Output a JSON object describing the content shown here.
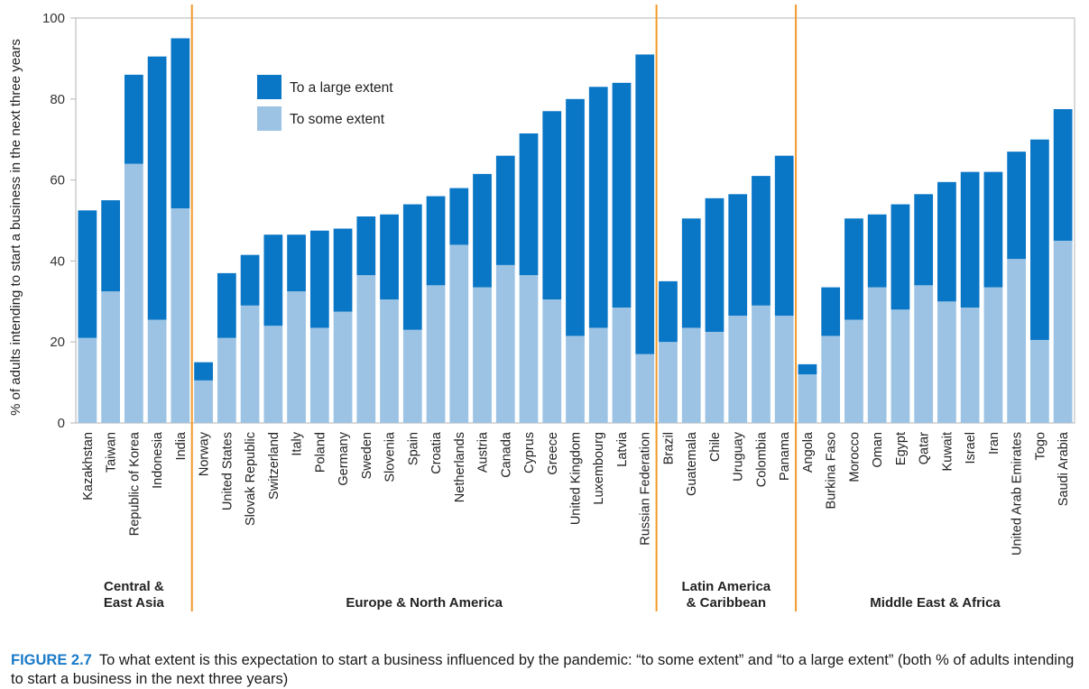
{
  "chart_data": {
    "type": "bar",
    "stacked": true,
    "ylabel": "% of adults intending to start a business in the next three years",
    "ylim": [
      0,
      100
    ],
    "yticks": [
      0,
      20,
      40,
      60,
      80,
      100
    ],
    "grid": false,
    "legend_position": "top-left",
    "categories": [
      "Kazakhstan",
      "Taiwan",
      "Republic of Korea",
      "Indonesia",
      "India",
      "Norway",
      "United States",
      "Slovak Republic",
      "Switzerland",
      "Italy",
      "Poland",
      "Germany",
      "Sweden",
      "Slovenia",
      "Spain",
      "Croatia",
      "Netherlands",
      "Austria",
      "Canada",
      "Cyprus",
      "Greece",
      "United Kingdom",
      "Luxembourg",
      "Latvia",
      "Russian Federation",
      "Brazil",
      "Guatemala",
      "Chile",
      "Uruguay",
      "Colombia",
      "Panama",
      "Angola",
      "Burkina Faso",
      "Morocco",
      "Oman",
      "Egypt",
      "Qatar",
      "Kuwait",
      "Israel",
      "Iran",
      "United Arab Emirates",
      "Togo",
      "Saudi Arabia"
    ],
    "groups": [
      {
        "label_lines": [
          "Central &",
          "East Asia"
        ],
        "start": 0,
        "end": 4
      },
      {
        "label_lines": [
          "Europe & North America"
        ],
        "start": 5,
        "end": 24
      },
      {
        "label_lines": [
          "Latin America",
          "& Caribbean"
        ],
        "start": 25,
        "end": 30
      },
      {
        "label_lines": [
          "Middle East & Africa"
        ],
        "start": 31,
        "end": 42
      }
    ],
    "series": [
      {
        "name": "To some extent",
        "color": "#9cc3e4",
        "values": [
          21,
          32.5,
          64,
          25.5,
          53,
          10.5,
          21,
          29,
          24,
          32.5,
          23.5,
          27.5,
          36.5,
          30.5,
          23,
          34,
          44,
          33.5,
          39,
          36.5,
          30.5,
          21.5,
          23.5,
          28.5,
          17,
          20,
          23.5,
          22.5,
          26.5,
          29,
          26.5,
          12,
          21.5,
          25.5,
          33.5,
          28,
          34,
          30,
          28.5,
          33.5,
          40.5,
          20.5,
          45
        ]
      },
      {
        "name": "To a large extent",
        "color": "#0a76c6",
        "values": [
          31.5,
          22.5,
          22,
          65,
          42,
          4.5,
          16,
          12.5,
          22.5,
          14,
          24,
          20.5,
          14.5,
          21,
          31,
          22,
          14,
          28,
          27,
          35,
          46.5,
          58.5,
          59.5,
          55.5,
          74,
          15,
          27,
          33,
          30,
          32,
          39.5,
          2.5,
          12,
          25,
          18,
          26,
          22.5,
          29.5,
          33.5,
          28.5,
          26.5,
          49.5,
          32.5
        ]
      }
    ]
  },
  "caption": {
    "figure_label": "FIGURE 2.7",
    "text": "To what extent is this expectation to start a business influenced by the pandemic: “to some extent” and “to a large extent” (both % of adults intending to start a business in the next three years)"
  }
}
